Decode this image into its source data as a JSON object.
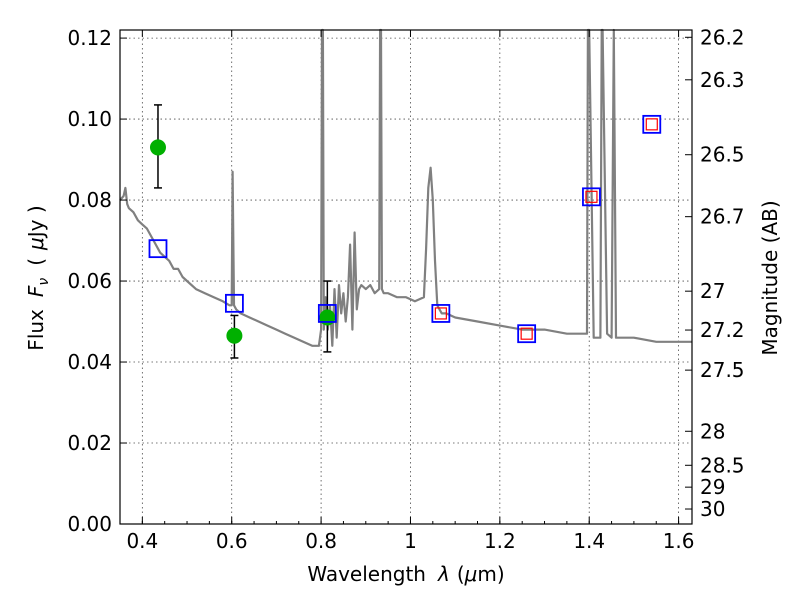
{
  "chart_data": {
    "type": "scatter",
    "title": "",
    "xlabel_text": "Wavelength",
    "xlabel_symbol": "λ",
    "xlabel_unit_open": "(",
    "xlabel_unit_mu": "μ",
    "xlabel_unit_rest": "m)",
    "ylabel_text": "Flux",
    "ylabel_symbol": "F",
    "ylabel_subscript": "ν",
    "ylabel_unit_open": "(",
    "ylabel_unit_mu": "μ",
    "ylabel_unit_rest": "Jy )",
    "y2label": "Magnitude (AB)",
    "xlim": [
      0.35,
      1.63
    ],
    "ylim": [
      0.0,
      0.122
    ],
    "grid": true,
    "x_ticks": [
      {
        "value": 0.4,
        "label": "0.4"
      },
      {
        "value": 0.6,
        "label": "0.6"
      },
      {
        "value": 0.8,
        "label": "0.8"
      },
      {
        "value": 1.0,
        "label": "1"
      },
      {
        "value": 1.2,
        "label": "1.2"
      },
      {
        "value": 1.4,
        "label": "1.4"
      },
      {
        "value": 1.6,
        "label": "1.6"
      }
    ],
    "y_ticks": [
      {
        "value": 0.0,
        "label": "0.00"
      },
      {
        "value": 0.02,
        "label": "0.02"
      },
      {
        "value": 0.04,
        "label": "0.04"
      },
      {
        "value": 0.06,
        "label": "0.06"
      },
      {
        "value": 0.08,
        "label": "0.08"
      },
      {
        "value": 0.1,
        "label": "0.10"
      },
      {
        "value": 0.12,
        "label": "0.12"
      }
    ],
    "y2_ticks": [
      {
        "flux": 0.1202,
        "label": "26.2"
      },
      {
        "flux": 0.1097,
        "label": "26.3"
      },
      {
        "flux": 0.0912,
        "label": "26.5"
      },
      {
        "flux": 0.0759,
        "label": "26.7"
      },
      {
        "flux": 0.0575,
        "label": "27"
      },
      {
        "flux": 0.0479,
        "label": "27.2"
      },
      {
        "flux": 0.038,
        "label": "27.5"
      },
      {
        "flux": 0.0229,
        "label": "28"
      },
      {
        "flux": 0.0145,
        "label": "28.5"
      },
      {
        "flux": 0.0091,
        "label": "29"
      },
      {
        "flux": 0.0037,
        "label": "30"
      }
    ],
    "series": [
      {
        "name": "model SED",
        "kind": "line",
        "color": "#808080",
        "x": [
          0.35,
          0.358,
          0.362,
          0.366,
          0.37,
          0.38,
          0.39,
          0.4,
          0.41,
          0.42,
          0.43,
          0.44,
          0.45,
          0.46,
          0.47,
          0.48,
          0.49,
          0.5,
          0.52,
          0.54,
          0.56,
          0.58,
          0.595,
          0.6,
          0.602,
          0.605,
          0.61,
          0.62,
          0.64,
          0.66,
          0.68,
          0.7,
          0.72,
          0.74,
          0.76,
          0.78,
          0.795,
          0.8,
          0.802,
          0.804,
          0.806,
          0.81,
          0.815,
          0.82,
          0.825,
          0.83,
          0.835,
          0.84,
          0.845,
          0.85,
          0.855,
          0.86,
          0.865,
          0.87,
          0.875,
          0.88,
          0.885,
          0.89,
          0.9,
          0.91,
          0.92,
          0.93,
          0.932,
          0.934,
          0.936,
          0.94,
          0.95,
          0.97,
          0.99,
          1.01,
          1.03,
          1.035,
          1.04,
          1.045,
          1.05,
          1.055,
          1.06,
          1.065,
          1.07,
          1.08,
          1.1,
          1.15,
          1.2,
          1.25,
          1.3,
          1.35,
          1.395,
          1.397,
          1.4,
          1.41,
          1.42,
          1.425,
          1.428,
          1.43,
          1.44,
          1.45,
          1.455,
          1.46,
          1.48,
          1.5,
          1.55,
          1.6,
          1.63
        ],
        "y": [
          0.08,
          0.081,
          0.083,
          0.079,
          0.078,
          0.077,
          0.075,
          0.074,
          0.073,
          0.071,
          0.069,
          0.067,
          0.066,
          0.065,
          0.063,
          0.063,
          0.061,
          0.06,
          0.058,
          0.057,
          0.056,
          0.055,
          0.054,
          0.054,
          0.087,
          0.054,
          0.053,
          0.052,
          0.051,
          0.05,
          0.049,
          0.048,
          0.047,
          0.046,
          0.045,
          0.044,
          0.044,
          0.048,
          0.122,
          0.122,
          0.048,
          0.056,
          0.048,
          0.054,
          0.044,
          0.058,
          0.046,
          0.059,
          0.052,
          0.057,
          0.05,
          0.056,
          0.069,
          0.048,
          0.072,
          0.053,
          0.058,
          0.059,
          0.058,
          0.059,
          0.057,
          0.058,
          0.122,
          0.122,
          0.058,
          0.057,
          0.057,
          0.056,
          0.056,
          0.055,
          0.056,
          0.068,
          0.083,
          0.088,
          0.08,
          0.065,
          0.054,
          0.053,
          0.052,
          0.052,
          0.051,
          0.05,
          0.049,
          0.048,
          0.048,
          0.047,
          0.047,
          0.122,
          0.122,
          0.046,
          0.046,
          0.046,
          0.122,
          0.122,
          0.047,
          0.046,
          0.122,
          0.046,
          0.046,
          0.046,
          0.045,
          0.045,
          0.045
        ]
      },
      {
        "name": "observed photometry",
        "kind": "errorbar",
        "color": "#00b000",
        "points": [
          {
            "x": 0.435,
            "y": 0.093,
            "ylow": 0.083,
            "yhigh": 0.1035
          },
          {
            "x": 0.606,
            "y": 0.0465,
            "ylow": 0.041,
            "yhigh": 0.0515
          },
          {
            "x": 0.814,
            "y": 0.051,
            "ylow": 0.0425,
            "yhigh": 0.06
          }
        ]
      },
      {
        "name": "model photometry (blue squares)",
        "kind": "marker",
        "color": "#0000ff",
        "points": [
          {
            "x": 0.435,
            "y": 0.068
          },
          {
            "x": 0.606,
            "y": 0.0545
          },
          {
            "x": 0.814,
            "y": 0.052
          },
          {
            "x": 1.068,
            "y": 0.052
          },
          {
            "x": 1.26,
            "y": 0.047
          },
          {
            "x": 1.405,
            "y": 0.0808
          },
          {
            "x": 1.54,
            "y": 0.0987
          }
        ]
      },
      {
        "name": "model photometry (red squares)",
        "kind": "marker",
        "color": "#ff0000",
        "points": [
          {
            "x": 1.068,
            "y": 0.052
          },
          {
            "x": 1.26,
            "y": 0.047
          },
          {
            "x": 1.405,
            "y": 0.0808
          },
          {
            "x": 1.54,
            "y": 0.0987
          }
        ]
      }
    ]
  }
}
